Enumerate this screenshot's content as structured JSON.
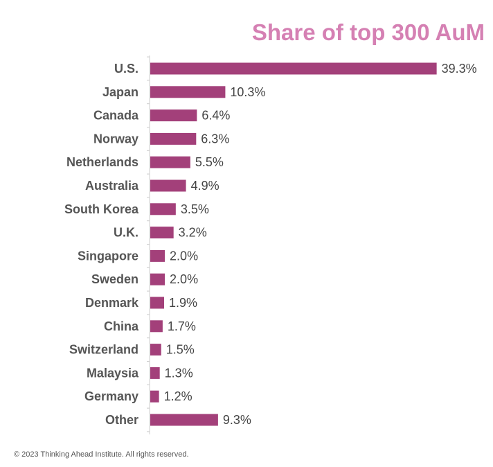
{
  "chart_data": {
    "type": "bar",
    "orientation": "horizontal",
    "title": "Share of top 300 AuM",
    "categories": [
      "U.S.",
      "Japan",
      "Canada",
      "Norway",
      "Netherlands",
      "Australia",
      "South Korea",
      "U.K.",
      "Singapore",
      "Sweden",
      "Denmark",
      "China",
      "Switzerland",
      "Malaysia",
      "Germany",
      "Other"
    ],
    "values": [
      39.3,
      10.3,
      6.4,
      6.3,
      5.5,
      4.9,
      3.5,
      3.2,
      2.0,
      2.0,
      1.9,
      1.7,
      1.5,
      1.3,
      1.2,
      9.3
    ],
    "value_labels": [
      "39.3%",
      "10.3%",
      "6.4%",
      "6.3%",
      "5.5%",
      "4.9%",
      "3.5%",
      "3.2%",
      "2.0%",
      "2.0%",
      "1.9%",
      "1.7%",
      "1.5%",
      "1.3%",
      "1.2%",
      "9.3%"
    ],
    "xlim": [
      0,
      40
    ],
    "unit": "%",
    "grid": false,
    "colors": {
      "bar": "#a3407a",
      "title": "#d580b3",
      "axis": "#cccccc",
      "category_text": "#555555",
      "value_text": "#444444"
    }
  },
  "footer": {
    "copyright": "© 2023 Thinking Ahead Institute. All rights reserved."
  }
}
